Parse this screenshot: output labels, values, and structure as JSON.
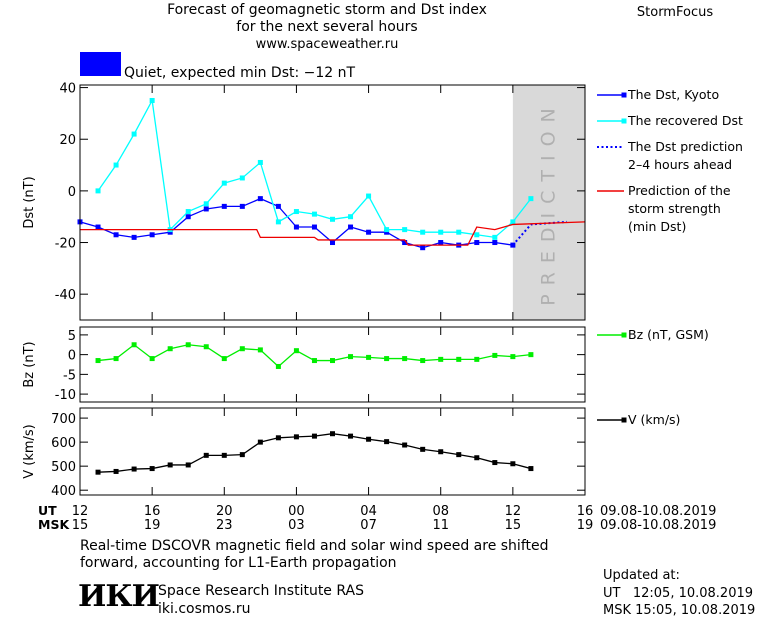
{
  "header": {
    "title": "Forecast of geomagnetic storm and Dst index\nfor the next several hours",
    "site": "www.spaceweather.ru",
    "brand": "StormFocus"
  },
  "chart_data": [
    {
      "type": "line",
      "ylabel": "Dst (nT)",
      "xlim": [
        0,
        28
      ],
      "ylim": [
        -50,
        41
      ],
      "yticks": [
        40,
        20,
        0,
        -20,
        -40
      ],
      "status": {
        "label": "Quiet, expected min Dst: −12 nT",
        "color": "#0000ff"
      },
      "prediction": {
        "xlim": [
          24,
          28
        ],
        "label": "PREDICTION",
        "color": "#d9d9d9"
      },
      "series": [
        {
          "name": "The Dst, Kyoto",
          "color": "#0000ff",
          "marker": true,
          "dash": false,
          "x": [
            0,
            1,
            2,
            3,
            4,
            5,
            6,
            7,
            8,
            9,
            10,
            11,
            12,
            13,
            14,
            15,
            16,
            17,
            18,
            19,
            20,
            21,
            22,
            23,
            24
          ],
          "values": [
            -12,
            -14,
            -17,
            -18,
            -17,
            -16,
            -10,
            -7,
            -6,
            -6,
            -3,
            -6,
            -14,
            -14,
            -20,
            -14,
            -16,
            -16,
            -20,
            -22,
            -20,
            -21,
            -20,
            -20,
            -21
          ]
        },
        {
          "name": "The recovered Dst",
          "color": "#00ffff",
          "marker": true,
          "dash": false,
          "x": [
            1,
            2,
            3,
            4,
            5,
            6,
            7,
            8,
            9,
            10,
            11,
            12,
            13,
            14,
            15,
            16,
            17,
            18,
            19,
            20,
            21,
            22,
            23,
            24,
            25
          ],
          "values": [
            0,
            10,
            22,
            35,
            -15,
            -8,
            -5,
            3,
            5,
            11,
            -12,
            -8,
            -9,
            -11,
            -10,
            -2,
            -15,
            -15,
            -16,
            -16,
            -16,
            -17,
            -18,
            -12,
            -3
          ]
        },
        {
          "name": "The Dst prediction\n2–4 hours ahead",
          "color": "#0000ff",
          "marker": false,
          "dash": true,
          "x": [
            24,
            25,
            27
          ],
          "values": [
            -21,
            -13,
            -12
          ]
        },
        {
          "name": "Prediction of the\nstorm strength\n(min Dst)",
          "color": "#ee0000",
          "marker": false,
          "dash": false,
          "x": [
            0,
            9.8,
            10,
            13,
            13.2,
            18,
            18.2,
            21.5,
            22,
            23,
            24,
            28
          ],
          "values": [
            -15,
            -15,
            -18,
            -18,
            -19,
            -19,
            -21,
            -21,
            -14,
            -15,
            -13,
            -12
          ]
        }
      ]
    },
    {
      "type": "line",
      "ylabel": "Bz (nT)",
      "xlim": [
        0,
        28
      ],
      "ylim": [
        -12,
        7
      ],
      "yticks": [
        5,
        0,
        -5,
        -10
      ],
      "series": [
        {
          "name": "Bz (nT, GSM)",
          "color": "#00ee00",
          "marker": true,
          "dash": false,
          "x": [
            1,
            2,
            3,
            4,
            5,
            6,
            7,
            8,
            9,
            10,
            11,
            12,
            13,
            14,
            15,
            16,
            17,
            18,
            19,
            20,
            21,
            22,
            23,
            24,
            25
          ],
          "values": [
            -1.5,
            -1,
            2.5,
            -1,
            1.5,
            2.5,
            2,
            -1,
            1.5,
            1.2,
            -3,
            1,
            -1.5,
            -1.5,
            -0.5,
            -0.7,
            -1,
            -1,
            -1.5,
            -1.2,
            -1.2,
            -1.2,
            -0.2,
            -0.5,
            0
          ]
        }
      ]
    },
    {
      "type": "line",
      "ylabel": "V (km/s)",
      "xlim": [
        0,
        28
      ],
      "ylim": [
        380,
        742
      ],
      "yticks": [
        700,
        600,
        500,
        400
      ],
      "xticks": [
        {
          "value": 0,
          "label": "12"
        },
        {
          "value": 4,
          "label": "16"
        },
        {
          "value": 8,
          "label": "20"
        },
        {
          "value": 12,
          "label": "00"
        },
        {
          "value": 16,
          "label": "04"
        },
        {
          "value": 20,
          "label": "08"
        },
        {
          "value": 24,
          "label": "12"
        },
        {
          "value": 28,
          "label": "16"
        }
      ],
      "x2ticks": [
        {
          "value": 0,
          "label": "15"
        },
        {
          "value": 4,
          "label": "19"
        },
        {
          "value": 8,
          "label": "23"
        },
        {
          "value": 12,
          "label": "03"
        },
        {
          "value": 16,
          "label": "07"
        },
        {
          "value": 20,
          "label": "11"
        },
        {
          "value": 24,
          "label": "15"
        },
        {
          "value": 28,
          "label": "19"
        }
      ],
      "xrow_labels": [
        "UT",
        "MSK"
      ],
      "date_ranges": [
        "09.08-10.08.2019",
        "09.08-10.08.2019"
      ],
      "series": [
        {
          "name": "V (km/s)",
          "color": "#000000",
          "marker": true,
          "dash": false,
          "x": [
            1,
            2,
            3,
            4,
            5,
            6,
            7,
            8,
            9,
            10,
            11,
            12,
            13,
            14,
            15,
            16,
            17,
            18,
            19,
            20,
            21,
            22,
            23,
            24,
            25
          ],
          "values": [
            475,
            478,
            488,
            490,
            505,
            505,
            545,
            545,
            548,
            600,
            618,
            622,
            625,
            635,
            625,
            612,
            602,
            588,
            570,
            560,
            548,
            535,
            515,
            510,
            490
          ]
        }
      ]
    }
  ],
  "footer": {
    "note": "Real-time DSCOVR magnetic field and solar wind speed are shifted\nforward, accounting for L1-Earth propagation",
    "logo": "ИКИ",
    "institute": "Space Research Institute RAS",
    "url": "iki.cosmos.ru",
    "updated": "Updated at:\nUT   12:05, 10.08.2019\nMSK 15:05, 10.08.2019"
  }
}
